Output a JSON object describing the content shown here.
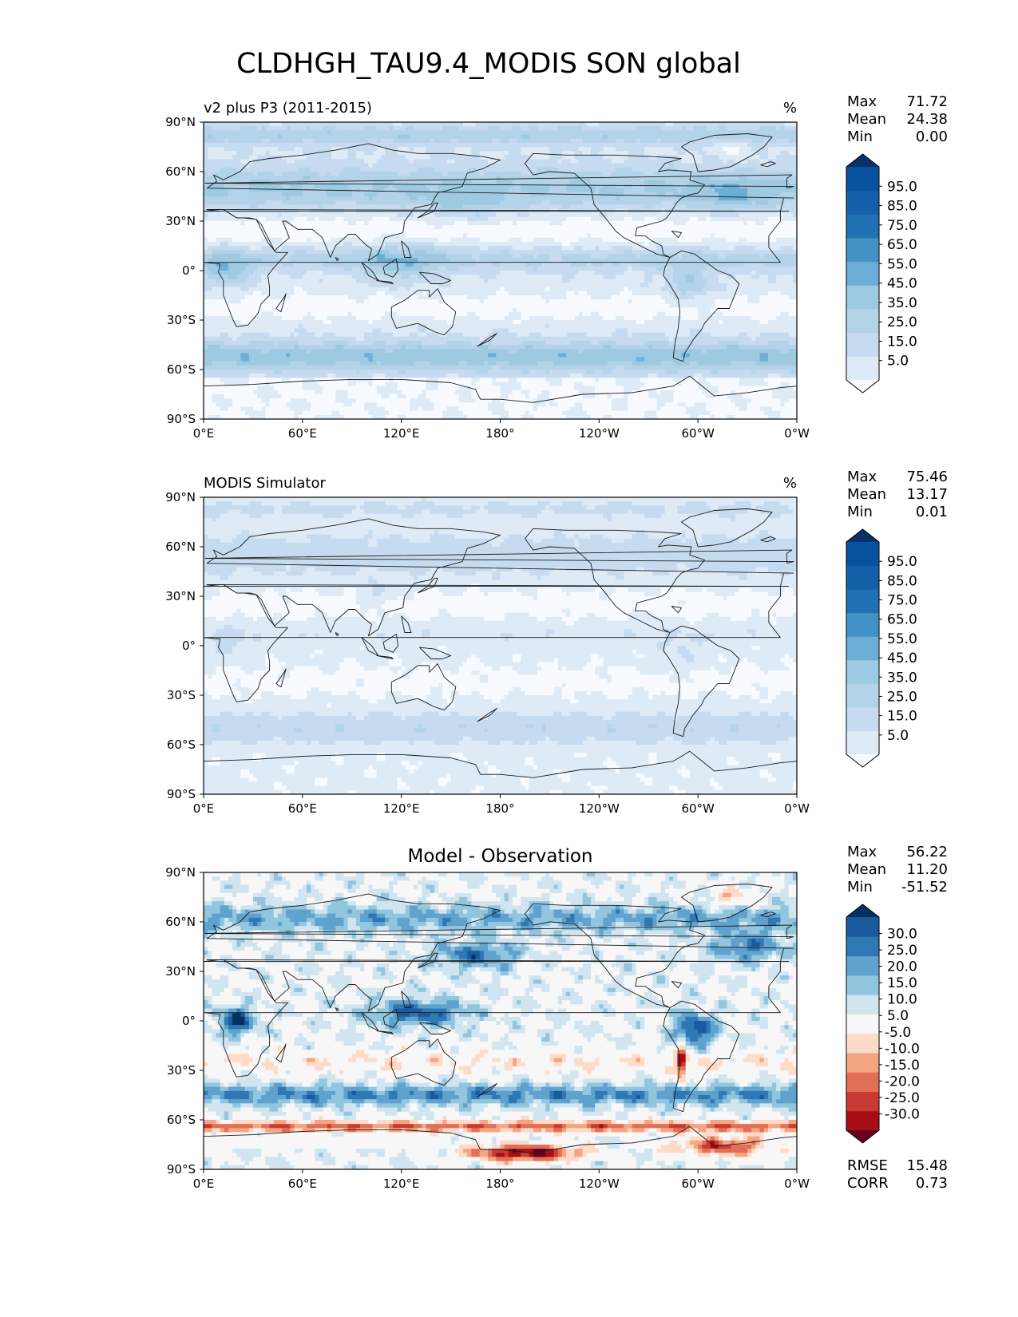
{
  "title": "CLDHGH_TAU9.4_MODIS SON global",
  "x_ticks": [
    "0°E",
    "60°E",
    "120°E",
    "180°",
    "120°W",
    "60°W",
    "0°W"
  ],
  "y_ticks": [
    "90°N",
    "60°N",
    "30°N",
    "0°",
    "30°S",
    "60°S",
    "90°S"
  ],
  "colors": {
    "ocean_pale": "#f4f8fd",
    "land_line": "#1a1a1a",
    "frame": "#000000"
  },
  "chart_data": [
    {
      "type": "heatmap",
      "left_title": "v2 plus P3 (2011-2015)",
      "center_title": "",
      "units": "%",
      "stats": [
        {
          "label": "Max",
          "value": "71.72"
        },
        {
          "label": "Mean",
          "value": "24.38"
        },
        {
          "label": "Min",
          "value": "0.00"
        }
      ],
      "extra_stats": [],
      "colorbar": {
        "labels": [
          "95.0",
          "85.0",
          "75.0",
          "65.0",
          "55.0",
          "45.0",
          "35.0",
          "25.0",
          "15.0",
          "5.0"
        ],
        "colors": [
          "#f7fbff",
          "#deebf7",
          "#c6dbef",
          "#b3d3e8",
          "#9ecae1",
          "#6baed6",
          "#4292c6",
          "#2171b5",
          "#1460a8",
          "#08519c",
          "#08306b"
        ]
      },
      "field": "model"
    },
    {
      "type": "heatmap",
      "left_title": "MODIS Simulator",
      "center_title": "",
      "units": "%",
      "stats": [
        {
          "label": "Max",
          "value": "75.46"
        },
        {
          "label": "Mean",
          "value": "13.17"
        },
        {
          "label": "Min",
          "value": "0.01"
        }
      ],
      "extra_stats": [],
      "colorbar": {
        "labels": [
          "95.0",
          "85.0",
          "75.0",
          "65.0",
          "55.0",
          "45.0",
          "35.0",
          "25.0",
          "15.0",
          "5.0"
        ],
        "colors": [
          "#f7fbff",
          "#deebf7",
          "#c6dbef",
          "#b3d3e8",
          "#9ecae1",
          "#6baed6",
          "#4292c6",
          "#2171b5",
          "#1460a8",
          "#08519c",
          "#08306b"
        ]
      },
      "field": "obs"
    },
    {
      "type": "heatmap",
      "left_title": "",
      "center_title": "Model - Observation",
      "units": "",
      "stats": [
        {
          "label": "Max",
          "value": "56.22"
        },
        {
          "label": "Mean",
          "value": "11.20"
        },
        {
          "label": "Min",
          "value": "-51.52"
        }
      ],
      "extra_stats": [
        {
          "label": "RMSE",
          "value": "15.48"
        },
        {
          "label": "CORR",
          "value": "0.73"
        }
      ],
      "colorbar": {
        "labels": [
          "30.0",
          "25.0",
          "20.0",
          "15.0",
          "10.0",
          "5.0",
          "-5.0",
          "-10.0",
          "-15.0",
          "-20.0",
          "-25.0",
          "-30.0"
        ],
        "colors": [
          "#67001f",
          "#a50f15",
          "#cb3b35",
          "#e26f57",
          "#f4a582",
          "#fddbc7",
          "#f7f7f7",
          "#d1e5f0",
          "#92c5de",
          "#5fa2cd",
          "#2f78b5",
          "#1a5a9e",
          "#053061"
        ]
      },
      "field": "diff"
    }
  ]
}
